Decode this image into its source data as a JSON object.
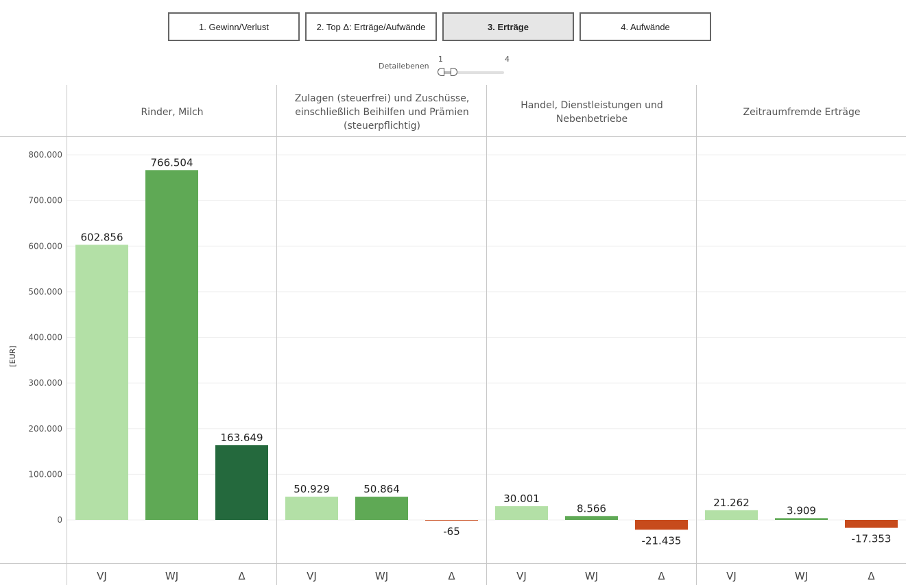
{
  "nav": {
    "buttons": [
      {
        "label": "1. Gewinn/Verlust",
        "active": false
      },
      {
        "label": "2. Top Δ: Erträge/Aufwände",
        "active": false
      },
      {
        "label": "3. Erträge",
        "active": true
      },
      {
        "label": "4. Aufwände",
        "active": false
      }
    ]
  },
  "slider": {
    "label": "Detailebenen",
    "min_label": "1",
    "max_label": "4",
    "value_low": 1,
    "value_high": 1
  },
  "colors": {
    "VJ": "#b3e0a6",
    "WJ": "#5fa955",
    "delta_positive": "#24693d",
    "delta_negative": "#c74b1c",
    "grid": "#efefef",
    "divider": "#c8c8c8"
  },
  "chart_data": {
    "type": "bar",
    "ylabel": "[EUR]",
    "ylim": [
      -95000,
      800000
    ],
    "yticks": [
      0,
      100000,
      200000,
      300000,
      400000,
      500000,
      600000,
      700000,
      800000
    ],
    "ytick_labels": [
      "0",
      "100.000",
      "200.000",
      "300.000",
      "400.000",
      "500.000",
      "600.000",
      "700.000",
      "800.000"
    ],
    "categories": [
      "VJ",
      "WJ",
      "Δ"
    ],
    "panels": [
      {
        "title": "Rinder, Milch",
        "values": [
          602856,
          766504,
          163649
        ],
        "labels": [
          "602.856",
          "766.504",
          "163.649"
        ]
      },
      {
        "title": "Zulagen (steuerfrei) und Zuschüsse, einschließlich Beihilfen und Prämien (steuerpflichtig)",
        "values": [
          50929,
          50864,
          -65
        ],
        "labels": [
          "50.929",
          "50.864",
          "-65"
        ]
      },
      {
        "title": "Handel, Dienstleistungen und Nebenbetriebe",
        "values": [
          30001,
          8566,
          -21435
        ],
        "labels": [
          "30.001",
          "8.566",
          "-21.435"
        ]
      },
      {
        "title": "Zeitraumfremde Erträge",
        "values": [
          21262,
          3909,
          -17353
        ],
        "labels": [
          "21.262",
          "3.909",
          "-17.353"
        ]
      }
    ]
  }
}
